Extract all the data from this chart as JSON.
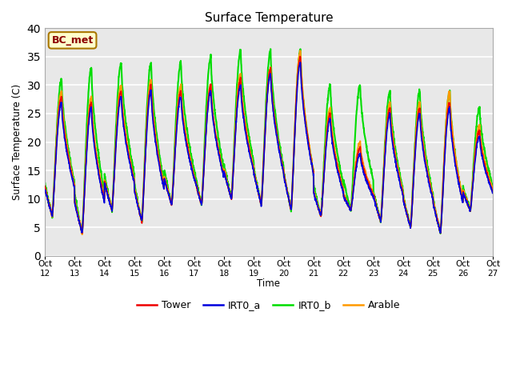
{
  "title": "Surface Temperature",
  "ylabel": "Surface Temperature (C)",
  "xlabel": "Time",
  "ylim": [
    0,
    40
  ],
  "annotation_text": "BC_met",
  "background_color": "#e8e8e8",
  "grid_color": "white",
  "series": {
    "Tower": {
      "color": "#ee0000",
      "lw": 1.2
    },
    "IRT0_a": {
      "color": "#0000dd",
      "lw": 1.2
    },
    "IRT0_b": {
      "color": "#00dd00",
      "lw": 1.5
    },
    "Arable": {
      "color": "#ff9900",
      "lw": 1.5
    }
  },
  "xtick_labels": [
    "Oct 12",
    "Oct 13",
    "Oct 14",
    "Oct 15",
    "Oct 16",
    "Oct 17",
    "Oct 18",
    "Oct 19",
    "Oct 20",
    "Oct 21",
    "Oct 22",
    "Oct 23",
    "Oct 24",
    "Oct 25",
    "Oct 26",
    "Oct 27"
  ],
  "ytick_positions": [
    0,
    5,
    10,
    15,
    20,
    25,
    30,
    35,
    40
  ],
  "legend_entries": [
    {
      "label": "Tower",
      "color": "#ee0000"
    },
    {
      "label": "IRT0_a",
      "color": "#0000dd"
    },
    {
      "label": "IRT0_b",
      "color": "#00dd00"
    },
    {
      "label": "Arable",
      "color": "#ff9900"
    }
  ],
  "night_bases": [
    7,
    4,
    8,
    6,
    9,
    9,
    10,
    9,
    8,
    7,
    8,
    6,
    5,
    4,
    8
  ],
  "peaks_tower": [
    28,
    27,
    29,
    30,
    29,
    30,
    31,
    33,
    35,
    25,
    19,
    26,
    26,
    27,
    22
  ],
  "peaks_irt0a": [
    27,
    26,
    28,
    29,
    28,
    29,
    30,
    32,
    34,
    24,
    18,
    25,
    25,
    26,
    21
  ],
  "peaks_irt0b": [
    31,
    33,
    34,
    34,
    34,
    35,
    36,
    36,
    36,
    30,
    30,
    29,
    29,
    29,
    26
  ],
  "peaks_arable": [
    29,
    28,
    30,
    31,
    30,
    30,
    32,
    33,
    36,
    26,
    20,
    27,
    27,
    29,
    23
  ],
  "peak_hour": 13.5,
  "min_hour": 6,
  "pts_per_day": 144
}
